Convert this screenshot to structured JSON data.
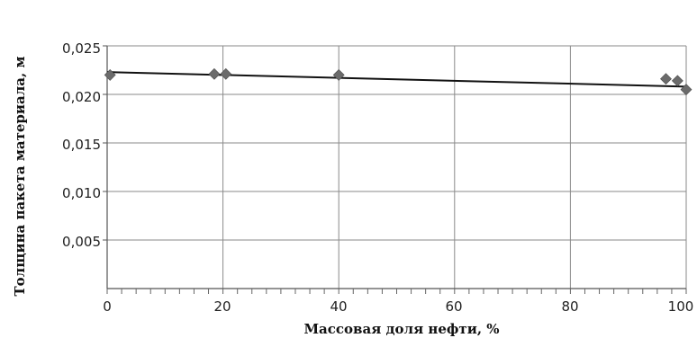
{
  "chart_data": {
    "type": "scatter",
    "xlabel": "Массовая доля нефти, %",
    "ylabel": "Толщина пакета материала, м",
    "xlim": [
      0,
      100
    ],
    "ylim": [
      0,
      0.025
    ],
    "x_ticks": [
      "0",
      "20",
      "40",
      "60",
      "80",
      "100"
    ],
    "y_ticks": [
      "0,005",
      "0,010",
      "0,015",
      "0,020",
      "0,025"
    ],
    "grid": true,
    "series": [
      {
        "points": [
          {
            "x": 0.5,
            "y": 0.022
          },
          {
            "x": 18.5,
            "y": 0.0221
          },
          {
            "x": 20.5,
            "y": 0.0221
          },
          {
            "x": 40,
            "y": 0.022
          },
          {
            "x": 96.5,
            "y": 0.0216
          },
          {
            "x": 98.5,
            "y": 0.0214
          },
          {
            "x": 100,
            "y": 0.0205
          }
        ],
        "color": "#6b6b6b"
      }
    ],
    "trendline": {
      "x": [
        0,
        100
      ],
      "y": [
        0.0223,
        0.0208
      ],
      "color": "#111111"
    }
  }
}
